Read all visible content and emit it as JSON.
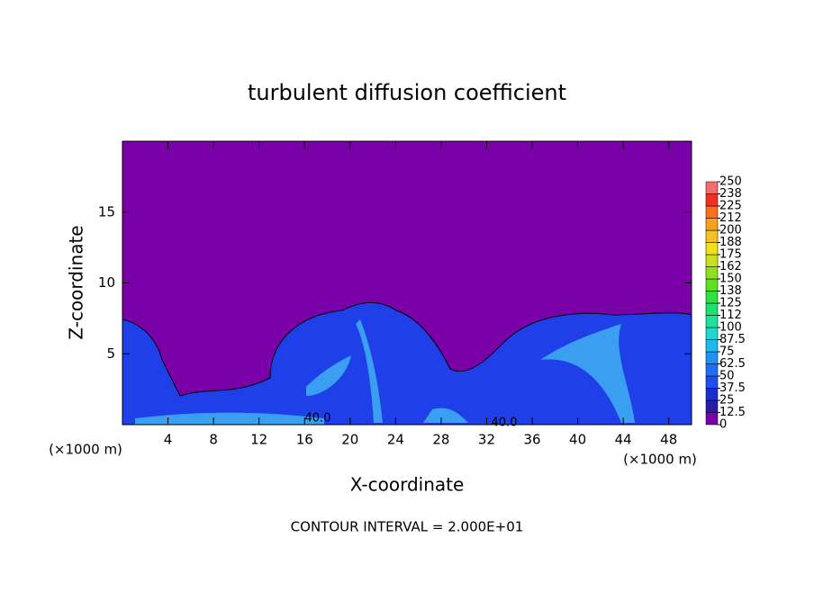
{
  "chart_data": {
    "type": "contour",
    "title": "turbulent diffusion coefficient",
    "x_label": "X-coordinate",
    "y_label": "Z-coordinate",
    "x_unit_left": "(×1000 m)",
    "x_unit_right": "(×1000 m)",
    "footer": "CONTOUR INTERVAL = 2.000E+01",
    "annotations": [
      "40.0",
      "40.0"
    ],
    "xlim": [
      0,
      50
    ],
    "ylim": [
      0,
      20
    ],
    "xticks": [
      4,
      8,
      12,
      16,
      20,
      24,
      28,
      32,
      36,
      40,
      44,
      48
    ],
    "yticks": [
      5,
      10,
      15
    ],
    "colorbar": {
      "levels": [
        0,
        12.5,
        25,
        37.5,
        50,
        62.5,
        75,
        87.5,
        100,
        {
          "value": 112.5,
          "label": "112"
        },
        125,
        {
          "value": 137.5,
          "label": "138"
        },
        150,
        {
          "value": 162.5,
          "label": "162"
        },
        175,
        {
          "value": 187.5,
          "label": "188"
        },
        200,
        {
          "value": 212.5,
          "label": "212"
        },
        225,
        {
          "value": 237.5,
          "label": "238"
        },
        250
      ],
      "colors": [
        "#7a00a8",
        "#2a1aa8",
        "#1a2fd0",
        "#1f4ff0",
        "#1f6ff5",
        "#1f92f5",
        "#20b8f0",
        "#20d8d0",
        "#20e0a0",
        "#20e070",
        "#30e040",
        "#60e020",
        "#90e020",
        "#c8e020",
        "#f0e020",
        "#f8c020",
        "#f8a020",
        "#f87020",
        "#f03020",
        "#f07070"
      ]
    }
  }
}
